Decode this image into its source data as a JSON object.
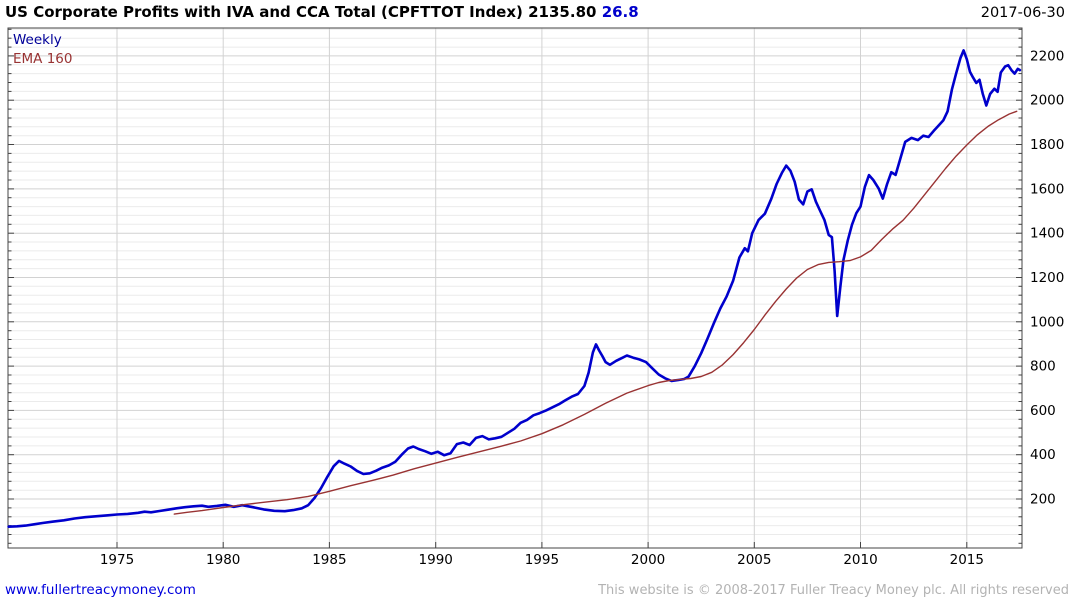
{
  "header": {
    "title": "US Corporate Profits with IVA and CCA Total (CPFTTOT Index)",
    "last_price": "2135.80",
    "change": "26.8",
    "date": "2017-06-30"
  },
  "legend": {
    "items": [
      {
        "label": "Weekly",
        "color": "#000099"
      },
      {
        "label": "EMA 160",
        "color": "#993333"
      }
    ]
  },
  "footer": {
    "website_link": "www.fullertreacymoney.com",
    "copyright": "This website is © 2008-2017 Fuller Treacy Money plc. All rights reserved"
  },
  "colors": {
    "price_line": "#0000cc",
    "ema_line": "#993333",
    "change_text": "#0000cc",
    "link_text": "#0000dd",
    "copyright_text": "#b3b3b3",
    "axis": "#444444"
  },
  "chart_data": {
    "type": "line",
    "title": "US Corporate Profits with IVA and CCA Total (CPFTTOT Index)",
    "last_value": 2135.8,
    "change_value": 26.8,
    "as_of_date": "2017-06-30",
    "frequency": "Weekly",
    "overlay": "EMA 160",
    "xlabel": "",
    "ylabel": "",
    "legend_position": "top-left-inside",
    "grid": {
      "minor_color": "#ebebeb",
      "major_color": "#d2d2d2",
      "vertical_color": "#d2d2d2",
      "minor_on": true
    },
    "x_axis": {
      "ticks": [
        1975,
        1980,
        1985,
        1990,
        1995,
        2000,
        2005,
        2010,
        2015
      ],
      "range": [
        1969.87,
        2017.6
      ]
    },
    "y_axis": {
      "ticks": [
        200,
        400,
        600,
        800,
        1000,
        1200,
        1400,
        1600,
        1800,
        2000,
        2200
      ],
      "minor_step": 40,
      "range": [
        -21,
        2326
      ],
      "side": "right"
    },
    "series": [
      {
        "name": "Weekly",
        "color": "#0000cc",
        "width": 2.6,
        "points": [
          [
            1969.9,
            75
          ],
          [
            1970.3,
            77
          ],
          [
            1970.7,
            80
          ],
          [
            1971.1,
            86
          ],
          [
            1971.5,
            92
          ],
          [
            1972,
            98
          ],
          [
            1972.5,
            104
          ],
          [
            1973,
            112
          ],
          [
            1973.5,
            118
          ],
          [
            1974,
            122
          ],
          [
            1974.5,
            126
          ],
          [
            1975,
            130
          ],
          [
            1975.5,
            133
          ],
          [
            1976,
            138
          ],
          [
            1976.3,
            143
          ],
          [
            1976.6,
            140
          ],
          [
            1977,
            146
          ],
          [
            1977.4,
            152
          ],
          [
            1977.8,
            158
          ],
          [
            1978.2,
            163
          ],
          [
            1978.6,
            167
          ],
          [
            1979,
            170
          ],
          [
            1979.3,
            165
          ],
          [
            1979.7,
            169
          ],
          [
            1980.1,
            174
          ],
          [
            1980.5,
            165
          ],
          [
            1980.9,
            172
          ],
          [
            1981.4,
            163
          ],
          [
            1981.9,
            153
          ],
          [
            1982.4,
            147
          ],
          [
            1982.9,
            145
          ],
          [
            1983.3,
            150
          ],
          [
            1983.7,
            158
          ],
          [
            1984,
            172
          ],
          [
            1984.3,
            205
          ],
          [
            1984.6,
            248
          ],
          [
            1984.9,
            300
          ],
          [
            1985.2,
            348
          ],
          [
            1985.45,
            372
          ],
          [
            1985.7,
            360
          ],
          [
            1986,
            347
          ],
          [
            1986.3,
            327
          ],
          [
            1986.6,
            313
          ],
          [
            1986.9,
            316
          ],
          [
            1987.2,
            328
          ],
          [
            1987.5,
            342
          ],
          [
            1987.8,
            352
          ],
          [
            1988.1,
            368
          ],
          [
            1988.4,
            400
          ],
          [
            1988.7,
            428
          ],
          [
            1988.95,
            437
          ],
          [
            1989.2,
            426
          ],
          [
            1989.5,
            416
          ],
          [
            1989.8,
            404
          ],
          [
            1990.1,
            413
          ],
          [
            1990.4,
            398
          ],
          [
            1990.7,
            407
          ],
          [
            1991,
            448
          ],
          [
            1991.3,
            455
          ],
          [
            1991.6,
            444
          ],
          [
            1991.9,
            476
          ],
          [
            1992.2,
            484
          ],
          [
            1992.5,
            469
          ],
          [
            1992.8,
            474
          ],
          [
            1993.1,
            481
          ],
          [
            1993.4,
            499
          ],
          [
            1993.7,
            517
          ],
          [
            1994,
            544
          ],
          [
            1994.3,
            557
          ],
          [
            1994.6,
            578
          ],
          [
            1994.9,
            588
          ],
          [
            1995.2,
            600
          ],
          [
            1995.5,
            614
          ],
          [
            1995.8,
            628
          ],
          [
            1996.1,
            645
          ],
          [
            1996.4,
            662
          ],
          [
            1996.7,
            674
          ],
          [
            1997,
            710
          ],
          [
            1997.2,
            770
          ],
          [
            1997.4,
            862
          ],
          [
            1997.55,
            898
          ],
          [
            1997.7,
            870
          ],
          [
            1997.85,
            845
          ],
          [
            1998,
            818
          ],
          [
            1998.2,
            806
          ],
          [
            1998.5,
            824
          ],
          [
            1998.8,
            838
          ],
          [
            1999,
            848
          ],
          [
            1999.3,
            838
          ],
          [
            1999.6,
            830
          ],
          [
            1999.9,
            818
          ],
          [
            2000.2,
            790
          ],
          [
            2000.5,
            762
          ],
          [
            2000.8,
            745
          ],
          [
            2001.1,
            733
          ],
          [
            2001.4,
            737
          ],
          [
            2001.7,
            742
          ],
          [
            2001.9,
            752
          ],
          [
            2002.2,
            800
          ],
          [
            2002.5,
            858
          ],
          [
            2002.8,
            925
          ],
          [
            2003.1,
            995
          ],
          [
            2003.4,
            1060
          ],
          [
            2003.7,
            1115
          ],
          [
            2004,
            1185
          ],
          [
            2004.3,
            1290
          ],
          [
            2004.55,
            1332
          ],
          [
            2004.7,
            1318
          ],
          [
            2004.9,
            1400
          ],
          [
            2005.2,
            1460
          ],
          [
            2005.5,
            1488
          ],
          [
            2005.8,
            1555
          ],
          [
            2006.05,
            1622
          ],
          [
            2006.3,
            1672
          ],
          [
            2006.5,
            1705
          ],
          [
            2006.7,
            1682
          ],
          [
            2006.9,
            1632
          ],
          [
            2007.1,
            1552
          ],
          [
            2007.3,
            1530
          ],
          [
            2007.5,
            1588
          ],
          [
            2007.7,
            1598
          ],
          [
            2007.9,
            1542
          ],
          [
            2008.1,
            1500
          ],
          [
            2008.3,
            1460
          ],
          [
            2008.5,
            1392
          ],
          [
            2008.65,
            1382
          ],
          [
            2008.78,
            1230
          ],
          [
            2008.9,
            1026
          ],
          [
            2009.05,
            1160
          ],
          [
            2009.2,
            1280
          ],
          [
            2009.4,
            1368
          ],
          [
            2009.6,
            1438
          ],
          [
            2009.8,
            1490
          ],
          [
            2010,
            1520
          ],
          [
            2010.2,
            1608
          ],
          [
            2010.4,
            1662
          ],
          [
            2010.6,
            1640
          ],
          [
            2010.85,
            1602
          ],
          [
            2011.05,
            1556
          ],
          [
            2011.25,
            1622
          ],
          [
            2011.45,
            1675
          ],
          [
            2011.65,
            1663
          ],
          [
            2011.85,
            1728
          ],
          [
            2012.1,
            1812
          ],
          [
            2012.4,
            1830
          ],
          [
            2012.7,
            1820
          ],
          [
            2012.95,
            1840
          ],
          [
            2013.2,
            1834
          ],
          [
            2013.45,
            1862
          ],
          [
            2013.7,
            1888
          ],
          [
            2013.9,
            1910
          ],
          [
            2014.1,
            1950
          ],
          [
            2014.3,
            2048
          ],
          [
            2014.5,
            2120
          ],
          [
            2014.7,
            2190
          ],
          [
            2014.85,
            2225
          ],
          [
            2015,
            2185
          ],
          [
            2015.15,
            2128
          ],
          [
            2015.3,
            2102
          ],
          [
            2015.45,
            2078
          ],
          [
            2015.6,
            2092
          ],
          [
            2015.75,
            2030
          ],
          [
            2015.92,
            1976
          ],
          [
            2016.1,
            2028
          ],
          [
            2016.3,
            2052
          ],
          [
            2016.45,
            2038
          ],
          [
            2016.6,
            2125
          ],
          [
            2016.8,
            2152
          ],
          [
            2016.95,
            2158
          ],
          [
            2017.1,
            2136
          ],
          [
            2017.25,
            2120
          ],
          [
            2017.4,
            2142
          ],
          [
            2017.5,
            2136
          ]
        ]
      },
      {
        "name": "EMA 160",
        "color": "#993333",
        "width": 1.4,
        "points": [
          [
            1977.7,
            132
          ],
          [
            1978.3,
            140
          ],
          [
            1979,
            148
          ],
          [
            1980,
            162
          ],
          [
            1981,
            175
          ],
          [
            1982,
            186
          ],
          [
            1983,
            197
          ],
          [
            1984,
            212
          ],
          [
            1985,
            235
          ],
          [
            1986,
            260
          ],
          [
            1987,
            283
          ],
          [
            1988,
            308
          ],
          [
            1989,
            337
          ],
          [
            1990,
            362
          ],
          [
            1991,
            388
          ],
          [
            1992,
            412
          ],
          [
            1993,
            436
          ],
          [
            1994,
            462
          ],
          [
            1995,
            495
          ],
          [
            1996,
            535
          ],
          [
            1997,
            582
          ],
          [
            1998,
            632
          ],
          [
            1999,
            678
          ],
          [
            2000,
            712
          ],
          [
            2000.5,
            726
          ],
          [
            2001,
            735
          ],
          [
            2001.5,
            740
          ],
          [
            2002,
            744
          ],
          [
            2002.5,
            753
          ],
          [
            2003,
            772
          ],
          [
            2003.5,
            806
          ],
          [
            2004,
            852
          ],
          [
            2004.5,
            906
          ],
          [
            2005,
            965
          ],
          [
            2005.5,
            1030
          ],
          [
            2006,
            1092
          ],
          [
            2006.5,
            1148
          ],
          [
            2007,
            1198
          ],
          [
            2007.5,
            1236
          ],
          [
            2008,
            1258
          ],
          [
            2008.5,
            1268
          ],
          [
            2009,
            1271
          ],
          [
            2009.5,
            1276
          ],
          [
            2010,
            1293
          ],
          [
            2010.5,
            1322
          ],
          [
            2011,
            1372
          ],
          [
            2011.5,
            1418
          ],
          [
            2012,
            1458
          ],
          [
            2012.5,
            1512
          ],
          [
            2013,
            1572
          ],
          [
            2013.5,
            1632
          ],
          [
            2014,
            1692
          ],
          [
            2014.5,
            1748
          ],
          [
            2015,
            1798
          ],
          [
            2015.5,
            1844
          ],
          [
            2016,
            1882
          ],
          [
            2016.5,
            1912
          ],
          [
            2017,
            1938
          ],
          [
            2017.35,
            1950
          ]
        ]
      }
    ]
  }
}
